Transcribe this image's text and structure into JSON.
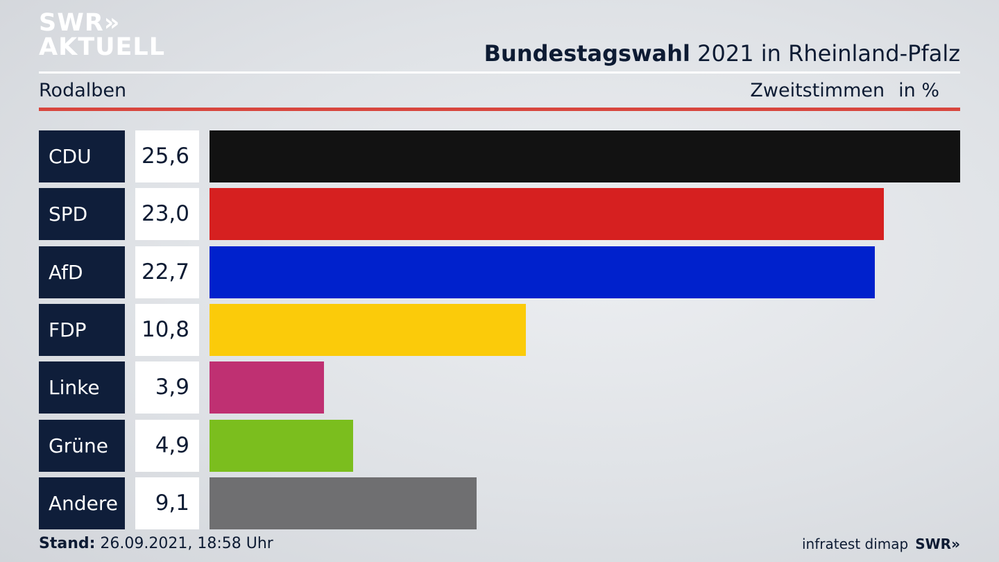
{
  "brand": {
    "logo_line1": "SWR»",
    "logo_line2": "AKTUELL",
    "footer_logo": "SWR»"
  },
  "header": {
    "title_bold": "Bundestagswahl",
    "title_rest": " 2021 in Rheinland-Pfalz",
    "location": "Rodalben",
    "measure": "Zweitstimmen",
    "unit": "in %"
  },
  "chart_data": {
    "type": "bar",
    "orientation": "horizontal",
    "title": "Bundestagswahl 2021 in Rheinland-Pfalz",
    "categories": [
      "CDU",
      "SPD",
      "AfD",
      "FDP",
      "Linke",
      "Grüne",
      "Andere"
    ],
    "values": [
      25.6,
      23.0,
      22.7,
      10.8,
      3.9,
      4.9,
      9.1
    ],
    "value_labels": [
      "25,6",
      "23,0",
      "22,7",
      "10,8",
      "3,9",
      "4,9",
      "9,1"
    ],
    "colors": [
      "#121212",
      "#d62020",
      "#0021cc",
      "#fbcb0a",
      "#bf3072",
      "#7bbe1e",
      "#6f6f71"
    ],
    "xlim": [
      0,
      25.6
    ]
  },
  "footer": {
    "stand_label": "Stand:",
    "stand_value": " 26.09.2021, 18:58 Uhr",
    "source": "infratest dimap"
  }
}
